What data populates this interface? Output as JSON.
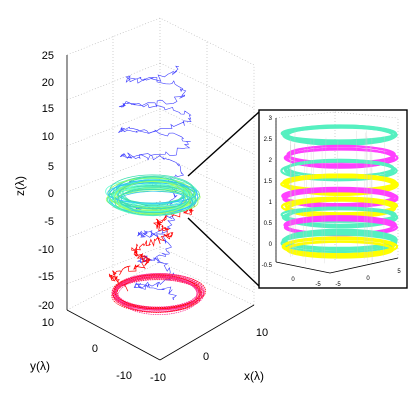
{
  "chart_data": [
    {
      "type": "line3d",
      "title": "",
      "xlabel": "x(λ)",
      "ylabel": "y(λ)",
      "zlabel": "z(λ)",
      "xlim": [
        -10,
        10
      ],
      "ylim": [
        -10,
        10
      ],
      "zlim": [
        -20,
        25
      ],
      "x_ticks": [
        "-10",
        "0",
        "10"
      ],
      "y_ticks": [
        "10",
        "0",
        "-10"
      ],
      "z_ticks": [
        "25",
        "20",
        "15",
        "10",
        "5",
        "0",
        "-5",
        "-10",
        "-15",
        "-20"
      ],
      "grid": true,
      "series": [
        {
          "color": "#4040ff",
          "description_of_shape": "staircase helix descending from z≈23 to z≈-18"
        },
        {
          "color": "#ff0000",
          "description_of_shape": "trajectory from torus near z≈0 down to ring near z≈-18"
        },
        {
          "color": "#40e0b0",
          "description_of_shape": "dense torus rings near z≈-1..1"
        },
        {
          "color": "#ff3090",
          "description_of_shape": "dense ring near z≈-17"
        }
      ]
    },
    {
      "type": "line3d",
      "title": "",
      "xlabel": "",
      "ylabel": "",
      "zlabel": "",
      "xlim": [
        -5,
        5
      ],
      "ylim": [
        -5,
        5
      ],
      "zlim": [
        -0.5,
        3
      ],
      "z_ticks": [
        "3",
        "2.5",
        "2",
        "1.5",
        "1",
        "0.5",
        "0",
        "-0.5"
      ],
      "x_ticks": [
        "0",
        "-5"
      ],
      "y_ticks": [
        "-5",
        "0",
        "5"
      ],
      "grid": true,
      "ring_layers": [
        {
          "z": 2.6,
          "color": "#55f0c0"
        },
        {
          "z": 2.1,
          "color": "#ff40ff"
        },
        {
          "z": 1.8,
          "color": "#55f0c0"
        },
        {
          "z": 1.45,
          "color": "#ffff00"
        },
        {
          "z": 1.15,
          "color": "#ff40ff"
        },
        {
          "z": 0.9,
          "color": "#ffff00"
        },
        {
          "z": 0.7,
          "color": "#55f0c0"
        },
        {
          "z": 0.45,
          "color": "#ff40ff"
        },
        {
          "z": 0.1,
          "color": "#55f0c0"
        },
        {
          "z": -0.05,
          "color": "#ffff00"
        }
      ]
    }
  ]
}
